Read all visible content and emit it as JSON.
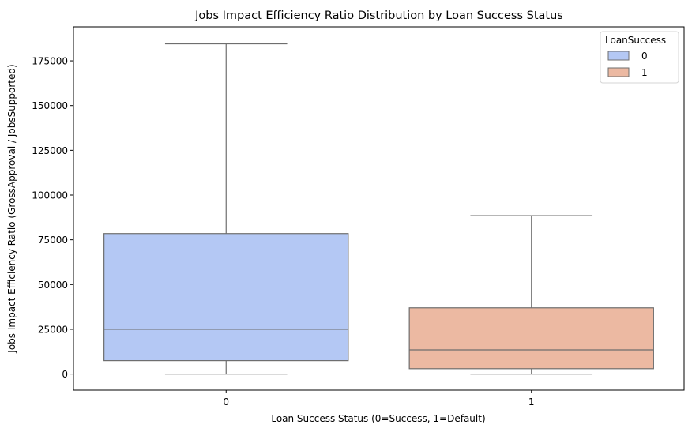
{
  "chart_data": {
    "type": "box",
    "title": "Jobs Impact Efficiency Ratio Distribution by Loan Success Status",
    "xlabel": "Loan Success Status (0=Success, 1=Default)",
    "ylabel": "Jobs Impact Efficiency Ratio (GrossApproval / JobsSupported)",
    "categories": [
      "0",
      "1"
    ],
    "ylim": [
      -9000,
      194000
    ],
    "yticks": [
      0,
      25000,
      50000,
      75000,
      100000,
      125000,
      150000,
      175000
    ],
    "ytick_labels": [
      "0",
      "25000",
      "50000",
      "75000",
      "100000",
      "125000",
      "150000",
      "175000"
    ],
    "series": [
      {
        "category": "0",
        "whisker_low": 0,
        "q1": 7500,
        "median": 25000,
        "q3": 78500,
        "whisker_high": 184500,
        "color": "#b4c8f4"
      },
      {
        "category": "1",
        "whisker_low": 0,
        "q1": 3000,
        "median": 13500,
        "q3": 37000,
        "whisker_high": 88500,
        "color": "#ecb9a2"
      }
    ],
    "legend": {
      "title": "LoanSuccess",
      "entries": [
        "0",
        "1"
      ],
      "placement": "top-right"
    },
    "grid": false,
    "line_color": "#6e6e6e"
  }
}
